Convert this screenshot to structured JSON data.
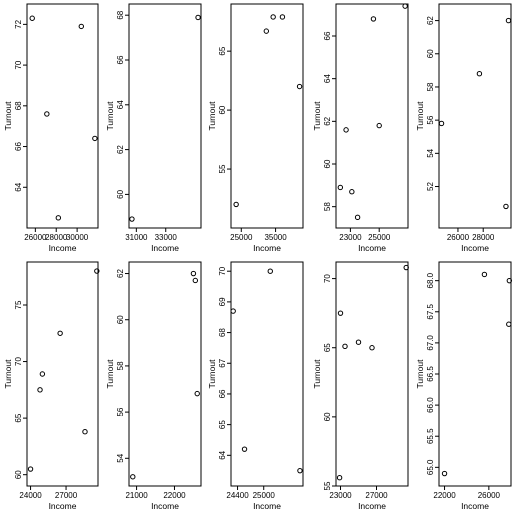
{
  "chart_data": [
    {
      "type": "scatter",
      "xlabel": "Income",
      "ylabel": "Turnout",
      "xlim": [
        25200,
        32000
      ],
      "ylim": [
        62,
        73
      ],
      "xticks": [
        {
          "v": 26000,
          "label": "26000"
        },
        {
          "v": 28000,
          "label": "28000"
        },
        {
          "v": 30000,
          "label": "30000"
        }
      ],
      "yticks": [
        {
          "v": 64,
          "label": "64"
        },
        {
          "v": 66,
          "label": "66"
        },
        {
          "v": 68,
          "label": "68"
        },
        {
          "v": 70,
          "label": "70"
        },
        {
          "v": 72,
          "label": "72"
        }
      ],
      "points": [
        {
          "x": 25700,
          "y": 72.3
        },
        {
          "x": 30400,
          "y": 71.9
        },
        {
          "x": 27100,
          "y": 67.6
        },
        {
          "x": 28200,
          "y": 62.5
        },
        {
          "x": 31700,
          "y": 66.4
        }
      ]
    },
    {
      "type": "scatter",
      "xlabel": "Income",
      "ylabel": "Turnout",
      "xlim": [
        30500,
        35400
      ],
      "ylim": [
        58.5,
        68.5
      ],
      "xticks": [
        {
          "v": 31000,
          "label": "31000"
        },
        {
          "v": 33000,
          "label": "33000"
        }
      ],
      "yticks": [
        {
          "v": 60,
          "label": "60"
        },
        {
          "v": 62,
          "label": "62"
        },
        {
          "v": 64,
          "label": "64"
        },
        {
          "v": 66,
          "label": "66"
        },
        {
          "v": 68,
          "label": "68"
        }
      ],
      "points": [
        {
          "x": 30700,
          "y": 58.9
        },
        {
          "x": 35200,
          "y": 67.9
        }
      ]
    },
    {
      "type": "scatter",
      "xlabel": "Income",
      "ylabel": "Turnout",
      "xlim": [
        22000,
        43000
      ],
      "ylim": [
        50,
        69
      ],
      "xticks": [
        {
          "v": 25000,
          "label": "25000"
        },
        {
          "v": 35000,
          "label": "35000"
        }
      ],
      "yticks": [
        {
          "v": 55,
          "label": "55"
        },
        {
          "v": 60,
          "label": "60"
        },
        {
          "v": 65,
          "label": "65"
        }
      ],
      "points": [
        {
          "x": 23500,
          "y": 52.0
        },
        {
          "x": 32300,
          "y": 66.7
        },
        {
          "x": 34300,
          "y": 67.9
        },
        {
          "x": 37000,
          "y": 67.9
        },
        {
          "x": 42000,
          "y": 62.0
        }
      ]
    },
    {
      "type": "scatter",
      "xlabel": "Income",
      "ylabel": "Turnout",
      "xlim": [
        22000,
        27000
      ],
      "ylim": [
        57,
        67.5
      ],
      "xticks": [
        {
          "v": 23000,
          "label": "23000"
        },
        {
          "v": 25000,
          "label": "25000"
        }
      ],
      "yticks": [
        {
          "v": 58,
          "label": "58"
        },
        {
          "v": 60,
          "label": "60"
        },
        {
          "v": 62,
          "label": "62"
        },
        {
          "v": 64,
          "label": "64"
        },
        {
          "v": 66,
          "label": "66"
        }
      ],
      "points": [
        {
          "x": 22300,
          "y": 58.9
        },
        {
          "x": 22700,
          "y": 61.6
        },
        {
          "x": 23100,
          "y": 58.7
        },
        {
          "x": 23500,
          "y": 57.5
        },
        {
          "x": 24600,
          "y": 66.8
        },
        {
          "x": 25000,
          "y": 61.8
        },
        {
          "x": 26800,
          "y": 67.4
        }
      ]
    },
    {
      "type": "scatter",
      "xlabel": "Income",
      "ylabel": "Turnout",
      "xlim": [
        24500,
        30200
      ],
      "ylim": [
        49.5,
        63
      ],
      "xticks": [
        {
          "v": 26000,
          "label": "26000"
        },
        {
          "v": 28000,
          "label": "28000"
        }
      ],
      "yticks": [
        {
          "v": 52,
          "label": "52"
        },
        {
          "v": 54,
          "label": "54"
        },
        {
          "v": 56,
          "label": "56"
        },
        {
          "v": 58,
          "label": "58"
        },
        {
          "v": 60,
          "label": "60"
        },
        {
          "v": 62,
          "label": "62"
        }
      ],
      "points": [
        {
          "x": 24700,
          "y": 55.8
        },
        {
          "x": 27700,
          "y": 58.8
        },
        {
          "x": 29800,
          "y": 50.8
        },
        {
          "x": 30000,
          "y": 62.0
        }
      ]
    },
    {
      "type": "scatter",
      "xlabel": "Income",
      "ylabel": "Turnout",
      "xlim": [
        23700,
        29700
      ],
      "ylim": [
        59,
        78.8
      ],
      "xticks": [
        {
          "v": 24000,
          "label": "24000"
        },
        {
          "v": 27000,
          "label": "27000"
        }
      ],
      "yticks": [
        {
          "v": 60,
          "label": "60"
        },
        {
          "v": 65,
          "label": "65"
        },
        {
          "v": 70,
          "label": "70"
        },
        {
          "v": 75,
          "label": "75"
        }
      ],
      "points": [
        {
          "x": 24000,
          "y": 60.5
        },
        {
          "x": 24800,
          "y": 67.5
        },
        {
          "x": 25000,
          "y": 68.9
        },
        {
          "x": 26500,
          "y": 72.5
        },
        {
          "x": 28600,
          "y": 63.8
        },
        {
          "x": 29600,
          "y": 78.0
        }
      ]
    },
    {
      "type": "scatter",
      "xlabel": "Income",
      "ylabel": "Turnout",
      "xlim": [
        20800,
        22700
      ],
      "ylim": [
        52.8,
        62.5
      ],
      "xticks": [
        {
          "v": 21000,
          "label": "21000"
        },
        {
          "v": 22000,
          "label": "22000"
        }
      ],
      "yticks": [
        {
          "v": 54,
          "label": "54"
        },
        {
          "v": 56,
          "label": "56"
        },
        {
          "v": 58,
          "label": "58"
        },
        {
          "v": 60,
          "label": "60"
        },
        {
          "v": 62,
          "label": "62"
        }
      ],
      "points": [
        {
          "x": 20900,
          "y": 53.2
        },
        {
          "x": 22500,
          "y": 62.0
        },
        {
          "x": 22550,
          "y": 61.7
        },
        {
          "x": 22600,
          "y": 56.8
        }
      ]
    },
    {
      "type": "scatter",
      "xlabel": "Income",
      "ylabel": "Turnout",
      "xlim": [
        24250,
        25900
      ],
      "ylim": [
        63,
        70.3
      ],
      "xticks": [
        {
          "v": 24400,
          "label": "24400"
        },
        {
          "v": 25000,
          "label": "25000"
        }
      ],
      "yticks": [
        {
          "v": 64,
          "label": "64"
        },
        {
          "v": 65,
          "label": "65"
        },
        {
          "v": 66,
          "label": "66"
        },
        {
          "v": 67,
          "label": "67"
        },
        {
          "v": 68,
          "label": "68"
        },
        {
          "v": 69,
          "label": "69"
        },
        {
          "v": 70,
          "label": "70"
        }
      ],
      "points": [
        {
          "x": 24300,
          "y": 68.7
        },
        {
          "x": 24560,
          "y": 64.2
        },
        {
          "x": 25150,
          "y": 70.0
        },
        {
          "x": 25830,
          "y": 63.5
        }
      ]
    },
    {
      "type": "scatter",
      "xlabel": "Income",
      "ylabel": "Turnout",
      "xlim": [
        22500,
        30500
      ],
      "ylim": [
        55,
        71.2
      ],
      "xticks": [
        {
          "v": 23000,
          "label": "23000"
        },
        {
          "v": 27000,
          "label": "27000"
        }
      ],
      "yticks": [
        {
          "v": 55,
          "label": "55"
        },
        {
          "v": 60,
          "label": "60"
        },
        {
          "v": 65,
          "label": "65"
        },
        {
          "v": 70,
          "label": "70"
        }
      ],
      "points": [
        {
          "x": 22900,
          "y": 55.6
        },
        {
          "x": 23000,
          "y": 67.5
        },
        {
          "x": 23500,
          "y": 65.1
        },
        {
          "x": 25000,
          "y": 65.4
        },
        {
          "x": 26500,
          "y": 65.0
        },
        {
          "x": 30300,
          "y": 70.8
        }
      ]
    },
    {
      "type": "scatter",
      "xlabel": "Income",
      "ylabel": "Turnout",
      "xlim": [
        21500,
        28000
      ],
      "ylim": [
        64.7,
        68.3
      ],
      "xticks": [
        {
          "v": 22000,
          "label": "22000"
        },
        {
          "v": 26000,
          "label": "26000"
        }
      ],
      "yticks": [
        {
          "v": 65.0,
          "label": "65.0"
        },
        {
          "v": 65.5,
          "label": "65.5"
        },
        {
          "v": 66.0,
          "label": "66.0"
        },
        {
          "v": 66.5,
          "label": "66.5"
        },
        {
          "v": 67.0,
          "label": "67.0"
        },
        {
          "v": 67.5,
          "label": "67.5"
        },
        {
          "v": 68.0,
          "label": "68.0"
        }
      ],
      "points": [
        {
          "x": 22000,
          "y": 64.9
        },
        {
          "x": 25600,
          "y": 68.1
        },
        {
          "x": 27800,
          "y": 67.3
        },
        {
          "x": 27850,
          "y": 68.0
        }
      ]
    }
  ]
}
